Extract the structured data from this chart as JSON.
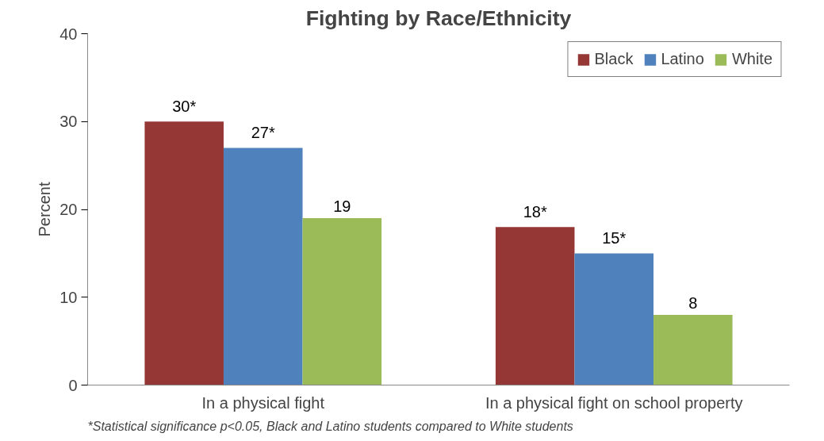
{
  "chart_data": {
    "type": "bar",
    "title": "Fighting by Race/Ethnicity",
    "ylabel": "Percent",
    "categories": [
      "In a physical fight",
      "In a physical fight on school property"
    ],
    "series": [
      {
        "name": "Black",
        "color": "#953735",
        "values": [
          30,
          18
        ],
        "value_labels": [
          "30*",
          "18*"
        ]
      },
      {
        "name": "Latino",
        "color": "#4f81bd",
        "values": [
          27,
          15
        ],
        "value_labels": [
          "27*",
          "15*"
        ]
      },
      {
        "name": "White",
        "color": "#9bbb59",
        "values": [
          19,
          8
        ],
        "value_labels": [
          "19",
          "8"
        ]
      }
    ],
    "ylim": [
      0,
      40
    ],
    "yticks": [
      0,
      10,
      20,
      30,
      40
    ],
    "grid": false,
    "legend": "top right",
    "annotations": [
      "*Statistical significance p<0.05, Black and Latino students compared to White students"
    ]
  }
}
